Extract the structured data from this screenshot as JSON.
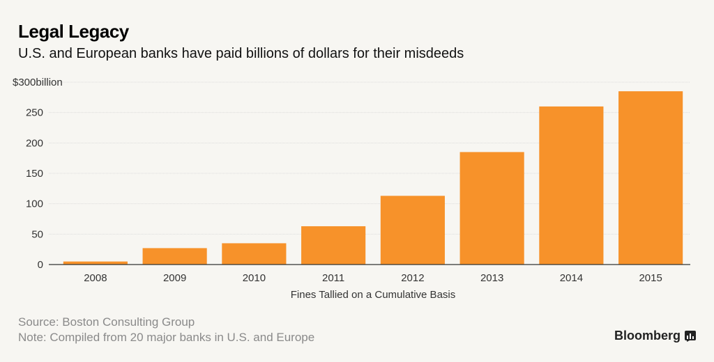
{
  "header": {
    "title": "Legal Legacy",
    "subtitle": "U.S. and European banks have paid billions of dollars for their misdeeds"
  },
  "footer": {
    "source": "Source: Boston Consulting Group",
    "note": "Note: Compiled from 20 major banks in U.S. and Europe"
  },
  "brand": {
    "name": "Bloomberg",
    "icon": "bloomberg-chart-icon"
  },
  "colors": {
    "bar": "#f7922a",
    "grid": "#dcdcdc",
    "axis": "#333333",
    "background": "#f7f6f2"
  },
  "chart_data": {
    "type": "bar",
    "title": "Legal Legacy",
    "subtitle": "U.S. and European banks have paid billions of dollars for their misdeeds",
    "xlabel": "Fines Tallied on a Cumulative Basis",
    "ylabel": "",
    "categories": [
      "2008",
      "2009",
      "2010",
      "2011",
      "2012",
      "2013",
      "2014",
      "2015"
    ],
    "values": [
      5,
      27,
      35,
      63,
      113,
      185,
      260,
      285
    ],
    "ylim": [
      0,
      300
    ],
    "yticks": [
      0,
      50,
      100,
      150,
      200,
      250,
      300
    ],
    "ytick_labels": [
      "0",
      "50",
      "100",
      "150",
      "200",
      "250",
      "$300billion"
    ],
    "grid": true,
    "legend": "none"
  }
}
